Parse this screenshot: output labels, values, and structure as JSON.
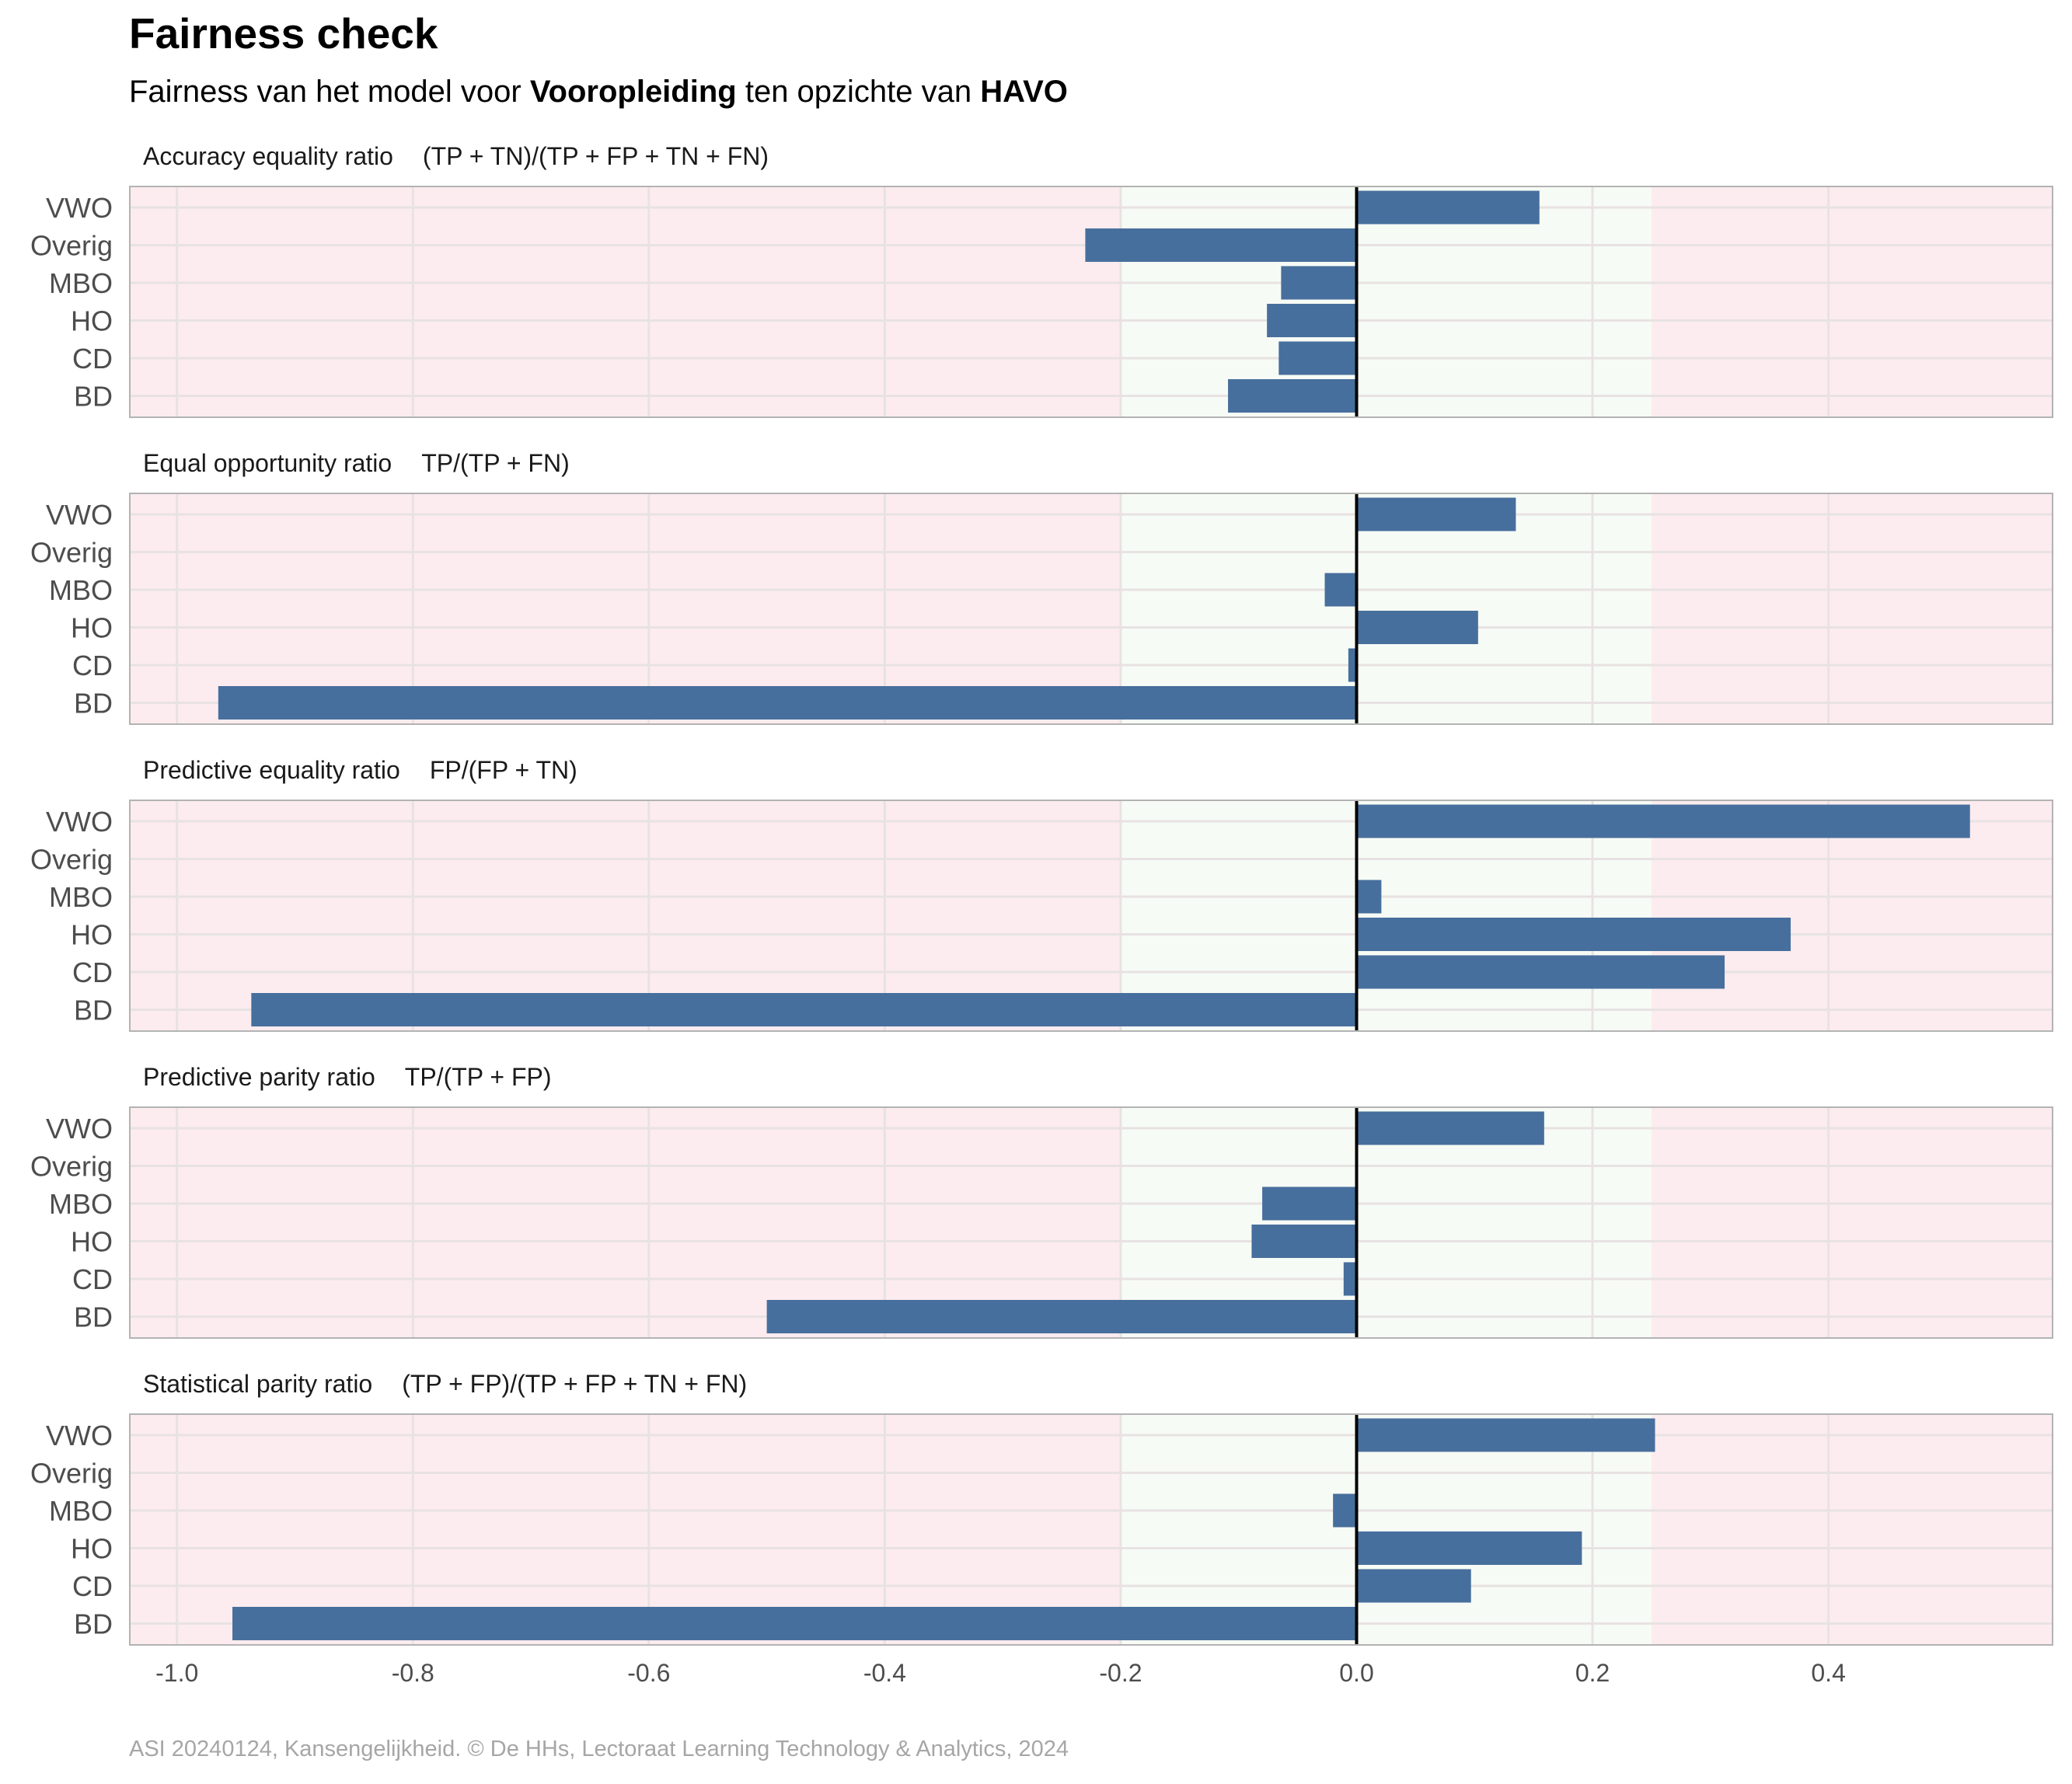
{
  "header": {
    "title": "Fairness check",
    "subtitle_parts": [
      {
        "text": "Fairness van het model voor ",
        "bold": false
      },
      {
        "text": "Vooropleiding",
        "bold": true
      },
      {
        "text": " ten opzichte van ",
        "bold": false
      },
      {
        "text": "HAVO",
        "bold": true
      }
    ]
  },
  "caption": "ASI 20240124, Kansengelijkheid. © De HHs, Lectoraat Learning Technology & Analytics, 2024",
  "colors": {
    "bar": "#476f9d",
    "fair_band": "#f7fbf5",
    "unfair_band": "#fcecef",
    "grid": "#e8e2e3",
    "zero_line": "#000000",
    "panel_border": "#b3b3b3",
    "tick_text": "#4d4d4d",
    "caption_text": "#a6a6a6"
  },
  "chart_data": {
    "type": "bar",
    "orientation": "horizontal",
    "categories": [
      "VWO",
      "Overig",
      "MBO",
      "HO",
      "CD",
      "BD"
    ],
    "xlim": [
      -1.04,
      0.59
    ],
    "x_ticks": [
      -1.0,
      -0.8,
      -0.6,
      -0.4,
      -0.2,
      0.0,
      0.2,
      0.4
    ],
    "x_tick_labels": [
      "-1.0",
      "-0.8",
      "-0.6",
      "-0.4",
      "-0.2",
      "0.0",
      "0.2",
      "0.4"
    ],
    "fair_range": [
      -0.2,
      0.25
    ],
    "grid": true,
    "panels": [
      {
        "title": "Accuracy equality ratio",
        "formula": "(TP + TN)/(TP + FP + TN + FN)",
        "values": [
          0.155,
          -0.23,
          -0.064,
          -0.076,
          -0.066,
          -0.109
        ]
      },
      {
        "title": "Equal opportunity ratio",
        "formula": "TP/(TP + FN)",
        "values": [
          0.135,
          null,
          -0.027,
          0.103,
          -0.007,
          -0.965
        ]
      },
      {
        "title": "Predictive equality ratio",
        "formula": "FP/(FP + TN)",
        "values": [
          0.52,
          null,
          0.021,
          0.368,
          0.312,
          -0.937
        ]
      },
      {
        "title": "Predictive parity ratio",
        "formula": "TP/(TP + FP)",
        "values": [
          0.159,
          null,
          -0.08,
          -0.089,
          -0.011,
          -0.5
        ]
      },
      {
        "title": "Statistical parity ratio",
        "formula": "(TP + FP)/(TP + FP + TN + FN)",
        "values": [
          0.253,
          null,
          -0.02,
          0.191,
          0.097,
          -0.953
        ]
      }
    ]
  }
}
